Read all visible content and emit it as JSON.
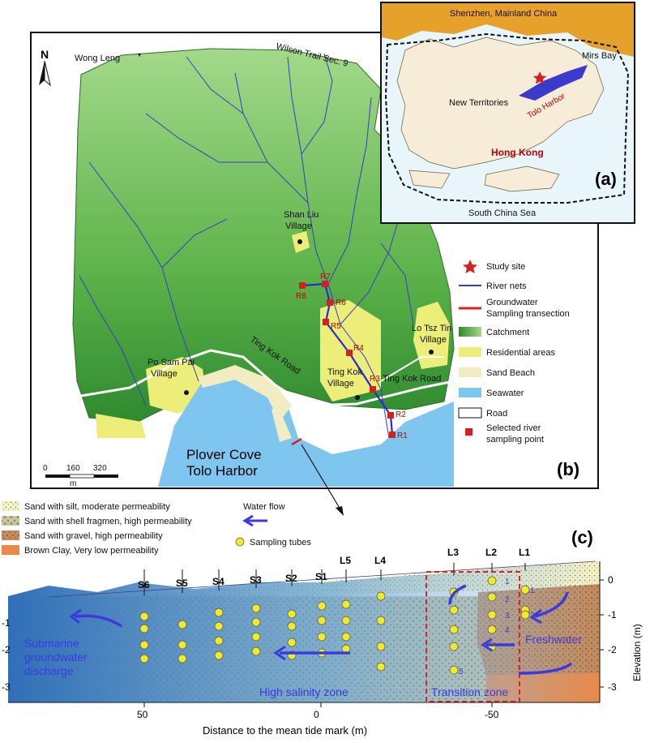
{
  "panel_b": {
    "letter": "(b)",
    "north_label": "N",
    "place_labels": {
      "wong_leng": "Wong Leng",
      "wilson_trail": "Wilson Trail Sec. 9",
      "shan_liu": "Shan Liu",
      "shan_liu_2": "Village",
      "lo_tsz_tin": "Lo Tsz Tin",
      "lo_tsz_tin_2": "Village",
      "po_sam_pai": "Po Sam Pai",
      "po_sam_pai_2": "Village",
      "ting_kok_village": "Ting Kok",
      "ting_kok_village_2": "Village",
      "ting_kok_road_1": "Ting Kok Road",
      "ting_kok_road_2": "Ting Kok Road",
      "plover_cove": "Plover Cove",
      "tolo_harbor": "Tolo Harbor"
    },
    "river_points": [
      "R1",
      "R2",
      "R3",
      "R4",
      "R5",
      "R6",
      "R7",
      "R8"
    ],
    "scale_bar": {
      "ticks": [
        "0",
        "160",
        "320"
      ],
      "unit": "m"
    },
    "legend": [
      {
        "label": "Study site",
        "color": "#d32020"
      },
      {
        "label": "River nets",
        "color": "#3a3acc"
      },
      {
        "label": "Groundwater",
        "label_2": "Sampling transection",
        "color": "#e02020"
      },
      {
        "label": "Catchment",
        "color": "#4aa83a"
      },
      {
        "label": "Residential areas",
        "color": "#eded7a"
      },
      {
        "label": "Sand Beach",
        "color": "#f2ecc2"
      },
      {
        "label": "Seawater",
        "color": "#7ec5ef"
      },
      {
        "label": "Road",
        "color": "#ffffff"
      },
      {
        "label": "Selected river",
        "label_2": "sampling point",
        "color": "#d32020"
      }
    ]
  },
  "panel_a": {
    "letter": "(a)",
    "labels": {
      "shenzhen": "Shenzhen, Mainland China",
      "mirs_bay": "Mirs Bay",
      "new_territories": "New Territories",
      "tolo_harbor": "Tolo Harbor",
      "hong_kong": "Hong Kong",
      "south_china_sea": "South China Sea"
    }
  },
  "panel_c": {
    "letter": "(c)",
    "sediment_legend": [
      {
        "label": "Sand with silt, moderate permeability",
        "color": "#f6f2c8"
      },
      {
        "label": "Sand with shell fragmen, high permeability",
        "color": "#cdc8a0"
      },
      {
        "label": "Sand with gravel, high permeability",
        "color": "#c9956a"
      },
      {
        "label": "Brown Clay, Very low permeability",
        "color": "#e8894a"
      }
    ],
    "water_flow_label": "Water flow",
    "sampling_tubes_label": "Sampling tubes",
    "stations": [
      "S6",
      "S5",
      "S4",
      "S3",
      "S2",
      "S1",
      "L5",
      "L4",
      "L3",
      "L2",
      "L1"
    ],
    "tube_numbers": [
      "1",
      "2",
      "3",
      "4",
      "5"
    ],
    "zones": {
      "submarine": "Submarine",
      "submarine_2": "groundwater",
      "submarine_3": "discharge",
      "high_salinity": "High salinity zone",
      "transition": "Transition zone",
      "freshwater": "Freshwater"
    },
    "x_axis": {
      "label": "Distance to the mean tide mark (m)",
      "ticks": [
        "50",
        "0",
        "-50"
      ]
    },
    "y_left_ticks": [
      "-1",
      "-2",
      "-3"
    ],
    "y_right": {
      "label": "Elevation (m)",
      "ticks": [
        "0",
        "-1",
        "-2",
        "-3"
      ]
    }
  }
}
